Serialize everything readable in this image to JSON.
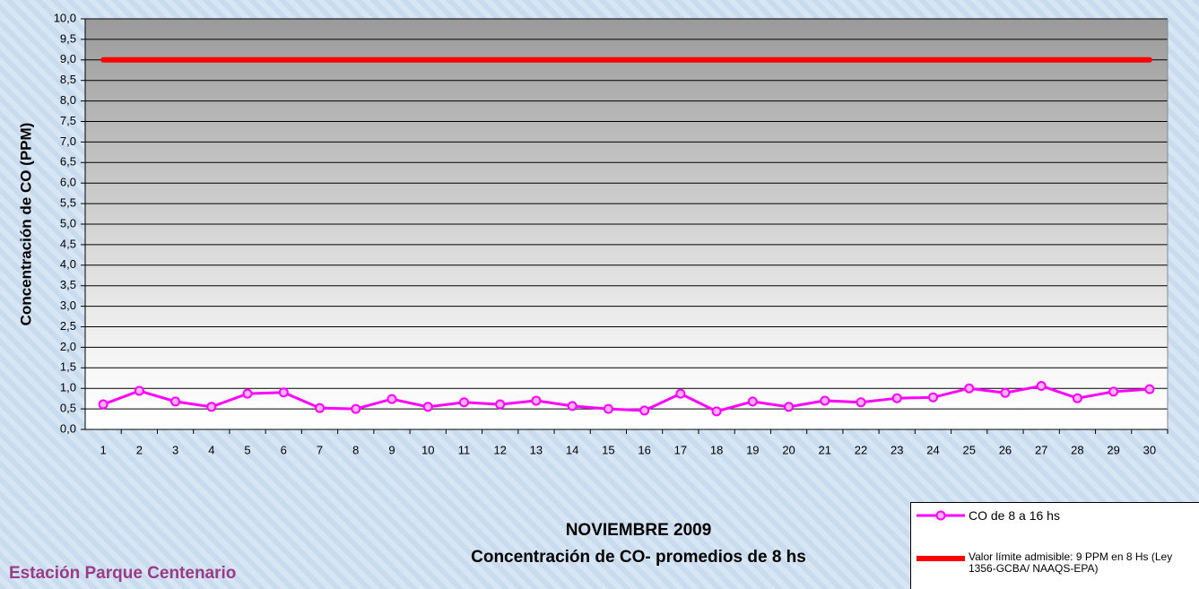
{
  "chart_data": {
    "type": "line",
    "title": "NOVIEMBRE 2009",
    "subtitle": "Concentración de CO- promedios de 8 hs",
    "annotation": "Estación Parque Centenario",
    "y_label": "Concentración de CO (PPM)",
    "categories": [
      "1",
      "2",
      "3",
      "4",
      "5",
      "6",
      "7",
      "8",
      "9",
      "10",
      "11",
      "12",
      "13",
      "14",
      "15",
      "16",
      "17",
      "18",
      "19",
      "20",
      "21",
      "22",
      "23",
      "24",
      "25",
      "26",
      "27",
      "28",
      "29",
      "30"
    ],
    "series": [
      {
        "name": "CO de 8 a 16 hs",
        "color": "#ff00ff",
        "marker": true,
        "values": [
          0.61,
          0.94,
          0.68,
          0.55,
          0.87,
          0.9,
          0.52,
          0.5,
          0.74,
          0.55,
          0.66,
          0.61,
          0.7,
          0.57,
          0.5,
          0.46,
          0.87,
          0.44,
          0.68,
          0.55,
          0.7,
          0.66,
          0.76,
          0.78,
          1.0,
          0.89,
          1.06,
          0.76,
          0.92,
          0.98
        ]
      },
      {
        "name": "Valor límite admisible: 9 PPM en 8 Hs (Ley 1356-GCBA/ NAAQS-EPA)",
        "color": "#ff0000",
        "marker": false,
        "values": [
          9,
          9,
          9,
          9,
          9,
          9,
          9,
          9,
          9,
          9,
          9,
          9,
          9,
          9,
          9,
          9,
          9,
          9,
          9,
          9,
          9,
          9,
          9,
          9,
          9,
          9,
          9,
          9,
          9,
          9
        ]
      }
    ],
    "ylim": [
      0,
      10
    ],
    "yticks": [
      {
        "value": 0,
        "label": "0,0"
      },
      {
        "value": 0.5,
        "label": "0,5"
      },
      {
        "value": 1,
        "label": "1,0"
      },
      {
        "value": 1.5,
        "label": "1,5"
      },
      {
        "value": 2,
        "label": "2,0"
      },
      {
        "value": 2.5,
        "label": "2,5"
      },
      {
        "value": 3,
        "label": "3,0"
      },
      {
        "value": 3.5,
        "label": "3,5"
      },
      {
        "value": 4,
        "label": "4,0"
      },
      {
        "value": 4.5,
        "label": "4,5"
      },
      {
        "value": 5,
        "label": "5,0"
      },
      {
        "value": 5.5,
        "label": "5,5"
      },
      {
        "value": 6,
        "label": "6,0"
      },
      {
        "value": 6.5,
        "label": "6,5"
      },
      {
        "value": 7,
        "label": "7,0"
      },
      {
        "value": 7.5,
        "label": "7,5"
      },
      {
        "value": 8,
        "label": "8,0"
      },
      {
        "value": 8.5,
        "label": "8,5"
      },
      {
        "value": 9,
        "label": "9,0"
      },
      {
        "value": 9.5,
        "label": "9,5"
      },
      {
        "value": 10,
        "label": "10,0"
      }
    ],
    "grid": true,
    "legend": "bottom-right"
  }
}
